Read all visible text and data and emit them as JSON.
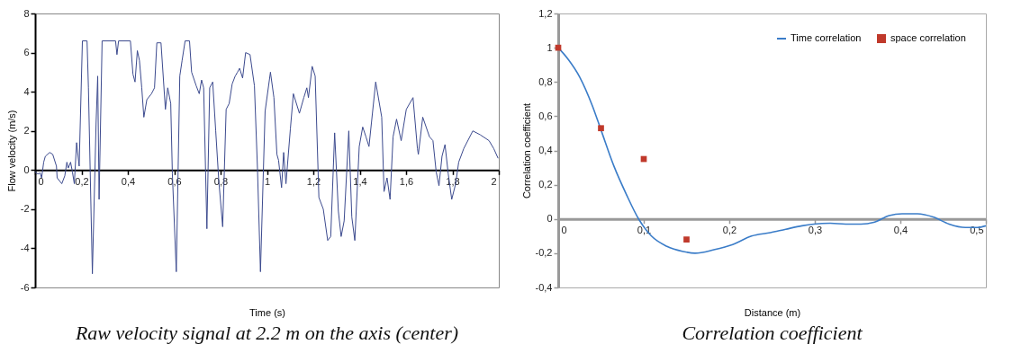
{
  "chart_data": [
    {
      "type": "line",
      "title": "Raw velocity signal at 2.2 m on the axis (center)",
      "xlabel": "Time (s)",
      "ylabel": "Flow velocity (m/s)",
      "xlim": [
        0,
        2
      ],
      "xticks": [
        0,
        {
          "value": 0.2,
          "label": "0,2"
        },
        {
          "value": 0.4,
          "label": "0,4"
        },
        {
          "value": 0.6,
          "label": "0,6"
        },
        {
          "value": 0.8,
          "label": "0,8"
        },
        1,
        {
          "value": 1.2,
          "label": "1,2"
        },
        {
          "value": 1.4,
          "label": "1,4"
        },
        {
          "value": 1.6,
          "label": "1,6"
        },
        {
          "value": 1.8,
          "label": "1,8"
        },
        2
      ],
      "ylim": [
        -6,
        8
      ],
      "yticks": [
        -6,
        -4,
        -2,
        0,
        2,
        4,
        6,
        8
      ],
      "grid": false,
      "legend": false,
      "series": [
        {
          "color": "#3c4a8e",
          "x": [
            0,
            0.012,
            0.022,
            0.028,
            0.037,
            0.044,
            0.063,
            0.076,
            0.092,
            0.095,
            0.115,
            0.128,
            0.137,
            0.143,
            0.153,
            0.161,
            0.169,
            0.179,
            0.19,
            0.204,
            0.224,
            0.23,
            0.247,
            0.263,
            0.27,
            0.276,
            0.289,
            0.347,
            0.353,
            0.36,
            0.411,
            0.422,
            0.431,
            0.441,
            0.45,
            0.46,
            0.469,
            0.482,
            0.502,
            0.515,
            0.525,
            0.543,
            0.562,
            0.572,
            0.585,
            0.592,
            0.609,
            0.624,
            0.634,
            0.647,
            0.666,
            0.675,
            0.695,
            0.708,
            0.718,
            0.727,
            0.741,
            0.753,
            0.766,
            0.779,
            0.792,
            0.809,
            0.824,
            0.837,
            0.85,
            0.863,
            0.873,
            0.882,
            0.895,
            0.908,
            0.927,
            0.946,
            0.959,
            0.972,
            0.992,
            1.015,
            1.03,
            1.043,
            1.05,
            1.063,
            1.072,
            1.082,
            1.101,
            1.114,
            1.14,
            1.159,
            1.172,
            1.179,
            1.195,
            1.208,
            1.224,
            1.243,
            1.262,
            1.275,
            1.292,
            1.308,
            1.32,
            1.333,
            1.353,
            1.366,
            1.379,
            1.398,
            1.413,
            1.427,
            1.44,
            1.469,
            1.495,
            1.505,
            1.518,
            1.531,
            1.544,
            1.559,
            1.579,
            1.601,
            1.63,
            1.649,
            1.653,
            1.672,
            1.701,
            1.716,
            1.73,
            1.742,
            1.755,
            1.768,
            1.782,
            1.797,
            1.814,
            1.827,
            1.849,
            1.888,
            1.92,
            1.958,
            1.978,
            1.997
          ],
          "values": [
            -0.1,
            -0.2,
            -0.15,
            -0.4,
            0.4,
            0.7,
            0.9,
            0.8,
            0.2,
            -0.4,
            -0.7,
            -0.3,
            0.4,
            0.1,
            0.4,
            -0.1,
            -0.7,
            1.4,
            0.2,
            6.6,
            6.6,
            4.2,
            -5.3,
            2.4,
            4.8,
            -1.5,
            6.6,
            6.6,
            5.9,
            6.6,
            6.6,
            4.9,
            4.5,
            6.1,
            5.6,
            4.2,
            2.7,
            3.6,
            3.9,
            4.2,
            6.5,
            6.5,
            3.1,
            4.2,
            3.4,
            -0.2,
            -5.2,
            4.8,
            5.6,
            6.6,
            6.6,
            5,
            4.3,
            3.9,
            4.6,
            4.2,
            -3,
            4.2,
            4.5,
            2,
            -0.5,
            -2.9,
            3.1,
            3.4,
            4.4,
            4.8,
            5,
            5.2,
            4.7,
            6,
            5.9,
            4.3,
            0.1,
            -5.2,
            3,
            5,
            3.7,
            0.8,
            0.5,
            -0.9,
            0.9,
            -0.7,
            2.1,
            3.9,
            2.9,
            3.7,
            4.2,
            3.7,
            5.3,
            4.8,
            -1.4,
            -2,
            -3.6,
            -3.4,
            1.9,
            -2.1,
            -3.4,
            -2.6,
            2,
            -2.4,
            -3.6,
            1.2,
            2.2,
            1.7,
            1.2,
            4.5,
            2.7,
            -1.1,
            -0.4,
            -1.5,
            1.7,
            2.6,
            1.5,
            3.1,
            3.7,
            1.1,
            0.8,
            2.7,
            1.7,
            1.5,
            -0.1,
            -0.8,
            0.7,
            1.3,
            -0.2,
            -1.5,
            -0.7,
            0.4,
            1.1,
            2,
            1.8,
            1.5,
            1.1,
            0.6
          ]
        }
      ]
    },
    {
      "type": "line",
      "title": "Correlation coefficient",
      "xlabel": "Distance (m)",
      "ylabel": "Correlation coefficient",
      "xlim": [
        0,
        0.5
      ],
      "xticks": [
        0,
        {
          "value": 0.1,
          "label": "0,1"
        },
        {
          "value": 0.2,
          "label": "0,2"
        },
        {
          "value": 0.3,
          "label": "0,3"
        },
        {
          "value": 0.4,
          "label": "0,4"
        },
        {
          "value": 0.5,
          "label": "0,5"
        }
      ],
      "ylim": [
        -0.4,
        1.2
      ],
      "yticks": [
        {
          "value": -0.4,
          "label": "-0,4"
        },
        {
          "value": -0.2,
          "label": "-0,2"
        },
        0,
        {
          "value": 0.2,
          "label": "0,2"
        },
        {
          "value": 0.4,
          "label": "0,4"
        },
        {
          "value": 0.6,
          "label": "0,6"
        },
        {
          "value": 0.8,
          "label": "0,8"
        },
        1,
        {
          "value": 1.2,
          "label": "1,2"
        }
      ],
      "grid": false,
      "legend": "top right",
      "series": [
        {
          "name": "Time correlation",
          "color": "#3a7cc8",
          "x": [
            0,
            0.012,
            0.025,
            0.04,
            0.05,
            0.065,
            0.08,
            0.094,
            0.109,
            0.127,
            0.146,
            0.16,
            0.182,
            0.204,
            0.226,
            0.248,
            0.266,
            0.285,
            0.299,
            0.318,
            0.336,
            0.354,
            0.369,
            0.387,
            0.402,
            0.42,
            0.439,
            0.457,
            0.476,
            0.49,
            0.5
          ],
          "values": [
            1,
            0.93,
            0.83,
            0.66,
            0.52,
            0.31,
            0.14,
            0,
            -0.1,
            -0.16,
            -0.19,
            -0.2,
            -0.18,
            -0.15,
            -0.1,
            -0.08,
            -0.06,
            -0.04,
            -0.03,
            -0.025,
            -0.03,
            -0.03,
            -0.02,
            0.02,
            0.03,
            0.03,
            0.01,
            -0.03,
            -0.05,
            -0.05,
            -0.04
          ]
        },
        {
          "name": "space correlation",
          "type": "scatter",
          "marker": "square",
          "color": "#c0392b",
          "x": [
            0,
            0.05,
            0.1,
            0.15
          ],
          "values": [
            1,
            0.53,
            0.35,
            -0.12
          ]
        }
      ]
    }
  ]
}
